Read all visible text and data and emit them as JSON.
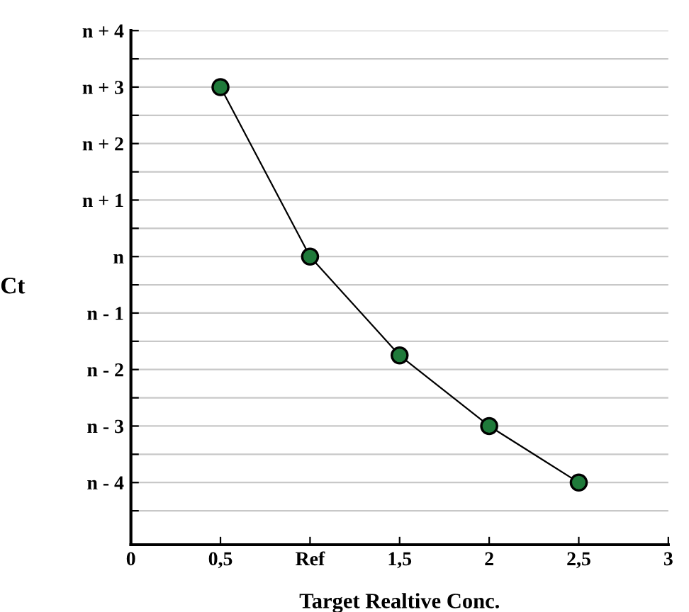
{
  "chart_data": {
    "type": "line",
    "xlabel": "Target Realtive Conc.",
    "ylabel": "Ct",
    "x": [
      0.5,
      1,
      1.5,
      2,
      2.5
    ],
    "series": [
      {
        "color": "#1f7a3a",
        "values": [
          3,
          0,
          -1.75,
          -3,
          -4
        ]
      }
    ],
    "xlim": [
      0,
      3
    ],
    "xticks": [
      0,
      {
        "value": 0.5,
        "label": "0,5"
      },
      {
        "value": 1,
        "label": "Ref"
      },
      {
        "value": 1.5,
        "label": "1,5"
      },
      2,
      {
        "value": 2.5,
        "label": "2,5"
      },
      3
    ],
    "ylim": [
      -5.1,
      4
    ],
    "yticks": [
      {
        "value": -4.5,
        "label": null
      },
      {
        "value": -4,
        "label": "n - 4"
      },
      {
        "value": -3.5,
        "label": null
      },
      {
        "value": -3,
        "label": "n - 3"
      },
      {
        "value": -2.5,
        "label": null
      },
      {
        "value": -2,
        "label": "n - 2"
      },
      {
        "value": -1.5,
        "label": null
      },
      {
        "value": -1,
        "label": "n - 1"
      },
      {
        "value": -0.5,
        "label": null
      },
      {
        "value": 0,
        "label": "n"
      },
      {
        "value": 0.5,
        "label": null
      },
      {
        "value": 1,
        "label": "n + 1"
      },
      {
        "value": 1.5,
        "label": null
      },
      {
        "value": 2,
        "label": "n + 2"
      },
      {
        "value": 2.5,
        "label": null
      },
      {
        "value": 3,
        "label": "n + 3"
      },
      {
        "value": 3.5,
        "label": null
      },
      {
        "value": 4,
        "label": "n + 4"
      }
    ],
    "grid": "y",
    "marker": "circle",
    "line_style": "solid"
  }
}
